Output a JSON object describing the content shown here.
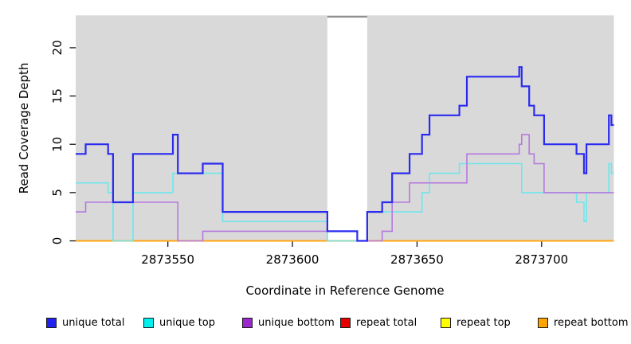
{
  "chart_data": {
    "type": "line",
    "step": true,
    "title": "",
    "xlabel": "Coordinate in Reference Genome",
    "ylabel": "Read Coverage Depth",
    "xlim": [
      2873513,
      2873729
    ],
    "ylim": [
      0,
      23.35
    ],
    "xticks": [
      2873550,
      2873600,
      2873650,
      2873700
    ],
    "yticks": [
      0,
      5,
      10,
      15,
      20
    ],
    "grid": false,
    "legend_position": "bottom",
    "plot_bg": "#D9D9D9",
    "axis_color": "#000000",
    "gap_region": {
      "x_start": 2873614,
      "x_end": 2873630,
      "fill": "#FFFFFF",
      "cap_color": "#8F8F8F"
    },
    "series": [
      {
        "name": "repeat total",
        "color": "#E60000",
        "width": 1.6,
        "points": [
          [
            2873513,
            0
          ],
          [
            2873729,
            0
          ]
        ]
      },
      {
        "name": "repeat top",
        "color": "#FFFF00",
        "width": 1.6,
        "points": [
          [
            2873513,
            0
          ],
          [
            2873729,
            0
          ]
        ]
      },
      {
        "name": "repeat bottom",
        "color": "#FFA513",
        "width": 2,
        "points": [
          [
            2873513,
            0
          ],
          [
            2873729,
            0
          ]
        ]
      },
      {
        "name": "unique top",
        "color": "#6FE6EC",
        "width": 1.6,
        "points": [
          [
            2873513,
            6
          ],
          [
            2873526,
            5
          ],
          [
            2873528,
            0
          ],
          [
            2873536,
            5
          ],
          [
            2873552,
            7
          ],
          [
            2873572,
            2
          ],
          [
            2873614,
            0
          ],
          [
            2873630,
            3
          ],
          [
            2873652,
            5
          ],
          [
            2873655,
            7
          ],
          [
            2873667,
            8
          ],
          [
            2873692,
            5
          ],
          [
            2873714,
            4
          ],
          [
            2873717,
            2
          ],
          [
            2873718,
            5
          ],
          [
            2873727,
            8
          ],
          [
            2873728,
            7
          ],
          [
            2873729,
            7
          ]
        ]
      },
      {
        "name": "unique bottom",
        "color": "#B678E0",
        "width": 1.6,
        "points": [
          [
            2873513,
            3
          ],
          [
            2873517,
            4
          ],
          [
            2873554,
            0
          ],
          [
            2873564,
            1
          ],
          [
            2873626,
            0
          ],
          [
            2873636,
            1
          ],
          [
            2873640,
            4
          ],
          [
            2873647,
            6
          ],
          [
            2873670,
            9
          ],
          [
            2873691,
            10
          ],
          [
            2873692,
            11
          ],
          [
            2873695,
            9
          ],
          [
            2873697,
            8
          ],
          [
            2873701,
            5
          ],
          [
            2873729,
            5
          ]
        ]
      },
      {
        "name": "unique total",
        "color": "#2B2BF0",
        "width": 2.2,
        "points": [
          [
            2873513,
            9
          ],
          [
            2873517,
            10
          ],
          [
            2873526,
            9
          ],
          [
            2873528,
            4
          ],
          [
            2873536,
            9
          ],
          [
            2873552,
            11
          ],
          [
            2873554,
            7
          ],
          [
            2873564,
            8
          ],
          [
            2873572,
            3
          ],
          [
            2873614,
            1
          ],
          [
            2873626,
            0
          ],
          [
            2873630,
            3
          ],
          [
            2873636,
            4
          ],
          [
            2873640,
            7
          ],
          [
            2873647,
            9
          ],
          [
            2873652,
            11
          ],
          [
            2873655,
            13
          ],
          [
            2873667,
            14
          ],
          [
            2873670,
            17
          ],
          [
            2873691,
            18
          ],
          [
            2873692,
            16
          ],
          [
            2873695,
            14
          ],
          [
            2873697,
            13
          ],
          [
            2873701,
            10
          ],
          [
            2873714,
            9
          ],
          [
            2873717,
            7
          ],
          [
            2873718,
            10
          ],
          [
            2873727,
            13
          ],
          [
            2873728,
            12
          ],
          [
            2873729,
            12
          ]
        ]
      }
    ],
    "legend": [
      {
        "label": "unique total",
        "color": "#2222EE"
      },
      {
        "label": "unique top",
        "color": "#00F0F0"
      },
      {
        "label": "unique bottom",
        "color": "#9C27CE"
      },
      {
        "label": "repeat total",
        "color": "#E60000"
      },
      {
        "label": "repeat top",
        "color": "#FFFF00"
      },
      {
        "label": "repeat bottom",
        "color": "#FFA500"
      }
    ]
  }
}
